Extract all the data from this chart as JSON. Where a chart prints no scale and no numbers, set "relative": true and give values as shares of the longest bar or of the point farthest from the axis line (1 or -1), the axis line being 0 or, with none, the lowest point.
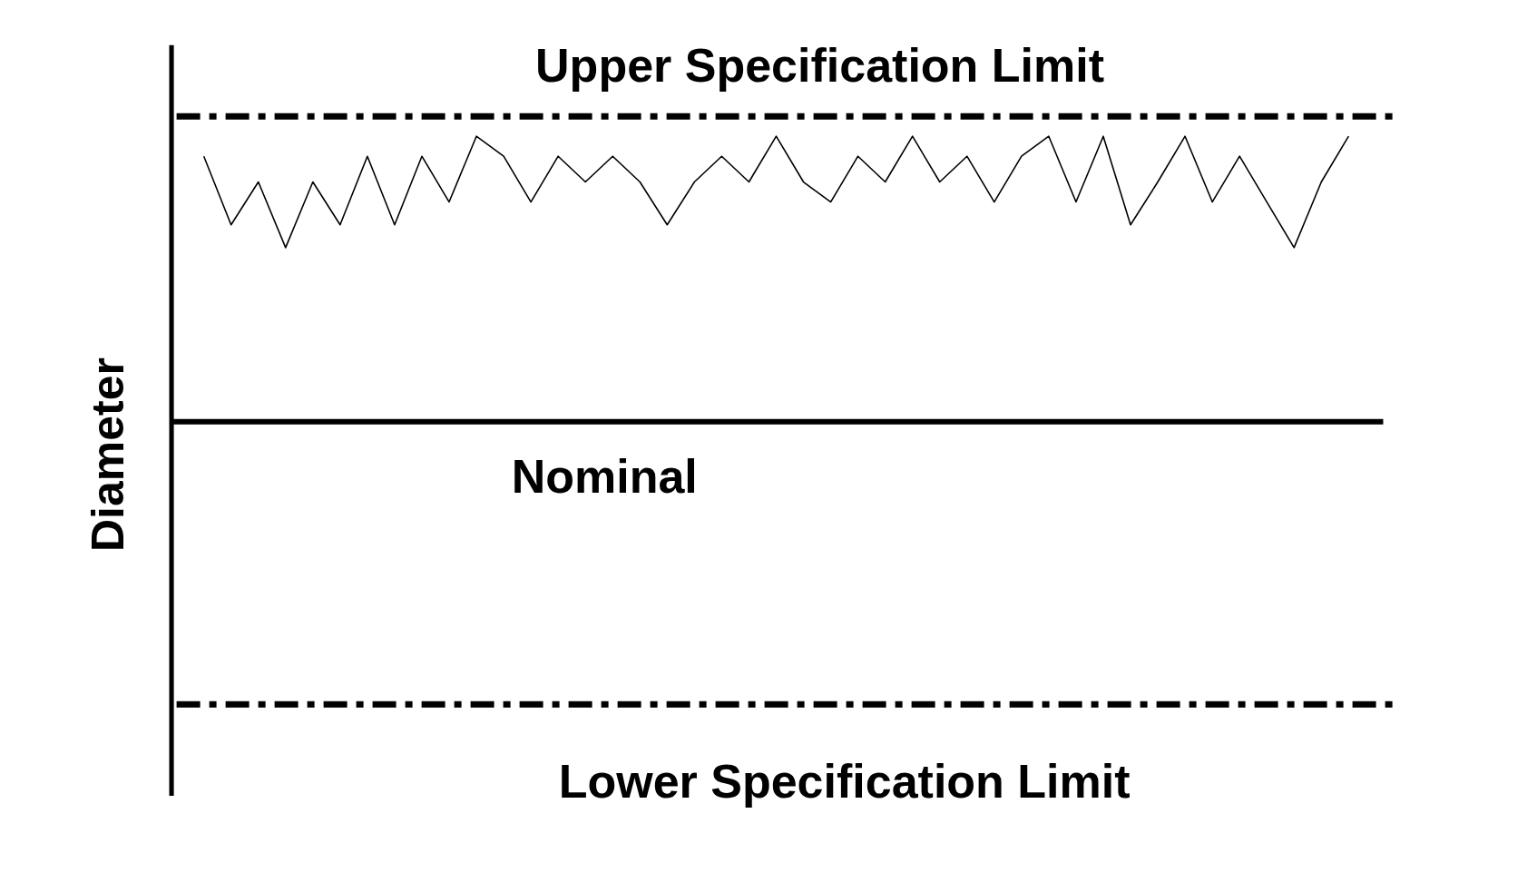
{
  "chart_data": {
    "type": "line",
    "relative": true,
    "ylabel": "Diameter",
    "tick_labels": false,
    "grid": false,
    "marker": "none",
    "line_style": "solid",
    "categories": [
      null,
      null,
      null,
      null,
      null,
      null,
      null,
      null,
      null,
      null,
      null,
      null,
      null,
      null,
      null,
      null,
      null,
      null,
      null,
      null,
      null,
      null,
      null,
      null,
      null,
      null,
      null,
      null,
      null,
      null,
      null,
      null,
      null,
      null,
      null,
      null,
      null,
      null,
      null,
      null,
      null,
      null,
      null
    ],
    "series": [
      {
        "color": "#000000",
        "values": [
          0.93,
          0.69,
          0.84,
          0.61,
          0.84,
          0.69,
          0.93,
          0.69,
          0.93,
          0.77,
          1.0,
          0.93,
          0.77,
          0.93,
          0.84,
          0.93,
          0.84,
          0.69,
          0.84,
          0.93,
          0.84,
          1.0,
          0.84,
          0.77,
          0.93,
          0.84,
          1.0,
          0.84,
          0.93,
          0.77,
          0.93,
          1.0,
          0.77,
          1.0,
          0.69,
          0.84,
          1.0,
          0.77,
          0.93,
          0.77,
          0.61,
          0.84,
          1.0
        ]
      }
    ],
    "ref_lines": [
      {
        "axis": "y",
        "value": 1.07,
        "label": "Upper Specification Limit",
        "color": "#000000",
        "line_style": "dashdot"
      },
      {
        "axis": "y",
        "value": 0,
        "label": "Nominal",
        "color": "#000000",
        "line_style": "solid"
      },
      {
        "axis": "y",
        "value": -0.99,
        "label": "Lower Specification Limit",
        "color": "#000000",
        "line_style": "dashdot"
      }
    ]
  }
}
